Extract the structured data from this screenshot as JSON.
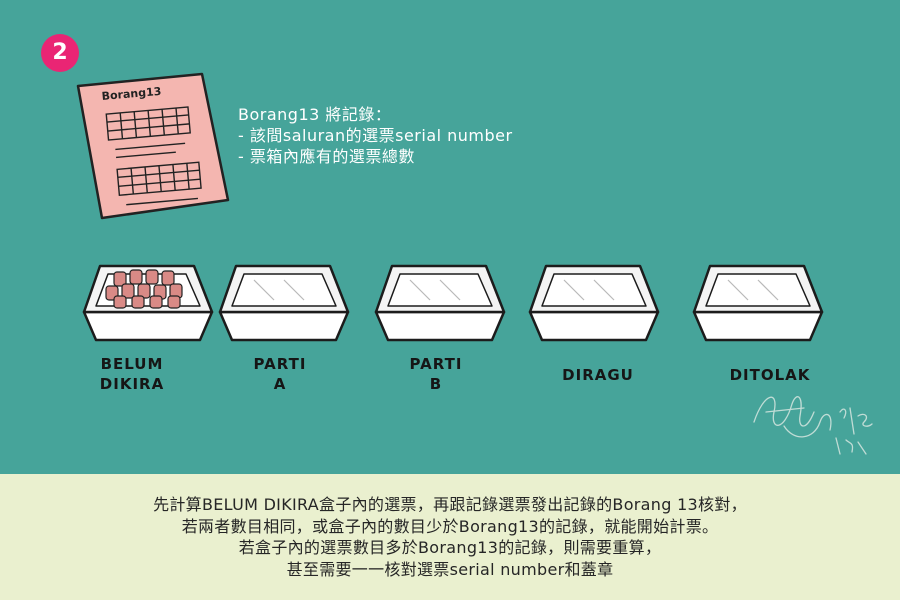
{
  "step_number": "2",
  "form": {
    "title": "Borang13"
  },
  "notes": {
    "heading": "Borang13 將記錄：",
    "items": [
      "- 該間saluran的選票serial number",
      "- 票箱內應有的選票總數"
    ]
  },
  "boxes": [
    {
      "line1": "BELUM",
      "line2": "DIKIRA",
      "filled": true
    },
    {
      "line1": "PARTI",
      "line2": "A",
      "filled": false
    },
    {
      "line1": "PARTI",
      "line2": "B",
      "filled": false
    },
    {
      "line1": "DIRAGU",
      "line2": "",
      "filled": false
    },
    {
      "line1": "DITOLAK",
      "line2": "",
      "filled": false
    }
  ],
  "explanation": [
    "先計算BELUM DIKIRA盒子內的選票，再跟記錄選票發出記錄的Borang 13核對，",
    "若兩者數目相同，或盒子內的數目少於Borang13的記錄，就能開始計票。",
    "若盒子內的選票數目多於Borang13的記錄，則需要重算，",
    "甚至需要一一核對選票serial number和蓋章"
  ],
  "colors": {
    "top_background": "#46a49a",
    "bottom_background": "#eaf0cf",
    "badge": "#ea2574",
    "form_paper": "#f4b6b0",
    "ballot": "#d98a86"
  }
}
